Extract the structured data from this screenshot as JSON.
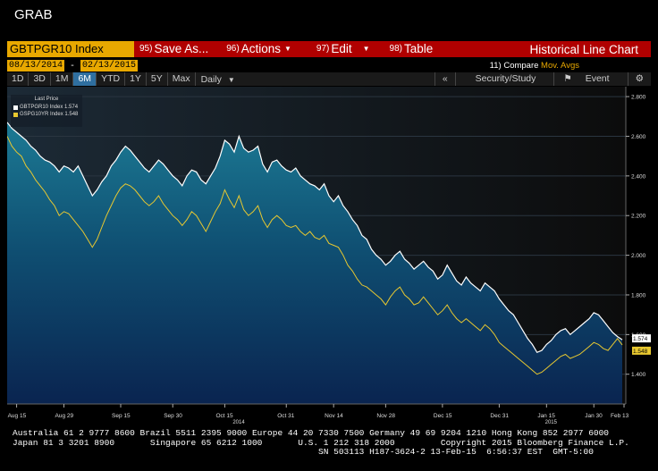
{
  "window": {
    "title": "GRAB"
  },
  "toolbar": {
    "ticker": "GBTPGR10 Index",
    "save": {
      "num": "95)",
      "label": "Save As..."
    },
    "actions": {
      "num": "96)",
      "label": "Actions"
    },
    "edit": {
      "num": "97)",
      "label": "Edit"
    },
    "table": {
      "num": "98)",
      "label": "Table"
    },
    "chart_title": "Historical Line Chart"
  },
  "dates": {
    "start": "08/13/2014",
    "end": "02/13/2015",
    "dash": "-"
  },
  "compare": {
    "num": "11)",
    "label": "Compare",
    "mov": "Mov. Avgs"
  },
  "ranges": [
    "1D",
    "3D",
    "1M",
    "6M",
    "YTD",
    "1Y",
    "5Y",
    "Max"
  ],
  "active_range": "6M",
  "daily": "Daily",
  "right_controls": {
    "collapse": "«",
    "security": "Security/Study",
    "event": "Event",
    "gear": "⚙"
  },
  "legend": {
    "header": "Last Price",
    "items": [
      {
        "name": "GBTPGR10 Index",
        "value": "1.574",
        "color": "#ffffff"
      },
      {
        "name": "GSPG10YR Index",
        "value": "1.548",
        "color": "#e8c830"
      }
    ]
  },
  "footer": {
    "line1": "Australia 61 2 9777 8600 Brazil 5511 2395 9000 Europe 44 20 7330 7500 Germany 49 69 9204 1210 Hong Kong 852 2977 6000",
    "line2": "Japan 81 3 3201 8900       Singapore 65 6212 1000       U.S. 1 212 318 2000         Copyright 2015 Bloomberg Finance L.P.",
    "line3": "                                                            SN 503113 H187-3624-2 13-Feb-15  6:56:37 EST  GMT-5:00"
  },
  "chart_data": {
    "type": "area",
    "ylim": [
      1.25,
      2.85
    ],
    "yticks": [
      1.4,
      1.6,
      1.8,
      2.0,
      2.2,
      2.4,
      2.6,
      2.8
    ],
    "ytick_labels": [
      "1.400",
      "1.600",
      "1.800",
      "2.000",
      "2.200",
      "2.400",
      "2.600",
      "2.800"
    ],
    "x_count": 131,
    "xticks": [
      {
        "i": 2,
        "label": "Aug 15"
      },
      {
        "i": 12,
        "label": "Aug 29"
      },
      {
        "i": 24,
        "label": "Sep 15"
      },
      {
        "i": 35,
        "label": "Sep 30"
      },
      {
        "i": 46,
        "label": "Oct 15"
      },
      {
        "i": 59,
        "label": "Oct 31"
      },
      {
        "i": 69,
        "label": "Nov 14"
      },
      {
        "i": 80,
        "label": "Nov 28"
      },
      {
        "i": 92,
        "label": "Dec 15"
      },
      {
        "i": 104,
        "label": "Dec 31"
      },
      {
        "i": 114,
        "label": "Jan 15"
      },
      {
        "i": 124,
        "label": "Jan 30"
      },
      {
        "i": 134,
        "label": "Feb 13"
      }
    ],
    "year_labels": [
      {
        "i": 49,
        "label": "2014"
      },
      {
        "i": 115,
        "label": "2015"
      }
    ],
    "last_labels": [
      {
        "series": 0,
        "label": "1.574"
      },
      {
        "series": 1,
        "label": "1.548"
      }
    ],
    "series": [
      {
        "name": "GBTPGR10 Index",
        "color": "#ffffff",
        "values": [
          2.67,
          2.64,
          2.62,
          2.6,
          2.58,
          2.55,
          2.53,
          2.5,
          2.48,
          2.47,
          2.45,
          2.42,
          2.45,
          2.44,
          2.42,
          2.45,
          2.4,
          2.35,
          2.3,
          2.33,
          2.37,
          2.4,
          2.45,
          2.48,
          2.52,
          2.55,
          2.53,
          2.5,
          2.47,
          2.44,
          2.42,
          2.45,
          2.48,
          2.46,
          2.43,
          2.4,
          2.38,
          2.35,
          2.4,
          2.43,
          2.42,
          2.38,
          2.36,
          2.4,
          2.44,
          2.5,
          2.58,
          2.56,
          2.52,
          2.6,
          2.54,
          2.52,
          2.53,
          2.55,
          2.46,
          2.42,
          2.47,
          2.48,
          2.45,
          2.43,
          2.42,
          2.44,
          2.4,
          2.38,
          2.36,
          2.35,
          2.33,
          2.36,
          2.3,
          2.27,
          2.3,
          2.25,
          2.22,
          2.18,
          2.15,
          2.1,
          2.08,
          2.03,
          2.0,
          1.98,
          1.95,
          1.97,
          2.0,
          2.02,
          1.98,
          1.96,
          1.93,
          1.95,
          1.97,
          1.94,
          1.92,
          1.88,
          1.9,
          1.95,
          1.91,
          1.87,
          1.85,
          1.89,
          1.86,
          1.84,
          1.82,
          1.86,
          1.84,
          1.82,
          1.78,
          1.75,
          1.72,
          1.7,
          1.66,
          1.62,
          1.58,
          1.55,
          1.51,
          1.52,
          1.55,
          1.57,
          1.6,
          1.62,
          1.63,
          1.6,
          1.62,
          1.64,
          1.66,
          1.68,
          1.71,
          1.7,
          1.67,
          1.64,
          1.61,
          1.59,
          1.574
        ]
      },
      {
        "name": "GSPG10YR Index",
        "color": "#e8c830",
        "values": [
          2.6,
          2.55,
          2.52,
          2.5,
          2.45,
          2.42,
          2.38,
          2.35,
          2.32,
          2.28,
          2.25,
          2.2,
          2.22,
          2.21,
          2.18,
          2.15,
          2.12,
          2.08,
          2.04,
          2.08,
          2.14,
          2.2,
          2.25,
          2.3,
          2.34,
          2.36,
          2.35,
          2.33,
          2.3,
          2.27,
          2.25,
          2.27,
          2.3,
          2.26,
          2.23,
          2.2,
          2.18,
          2.15,
          2.18,
          2.22,
          2.2,
          2.16,
          2.12,
          2.17,
          2.22,
          2.26,
          2.33,
          2.28,
          2.24,
          2.3,
          2.23,
          2.2,
          2.22,
          2.25,
          2.18,
          2.14,
          2.18,
          2.2,
          2.18,
          2.15,
          2.14,
          2.15,
          2.12,
          2.1,
          2.12,
          2.09,
          2.08,
          2.1,
          2.06,
          2.05,
          2.04,
          2.0,
          1.95,
          1.92,
          1.88,
          1.85,
          1.84,
          1.82,
          1.8,
          1.78,
          1.75,
          1.79,
          1.82,
          1.84,
          1.8,
          1.78,
          1.75,
          1.76,
          1.79,
          1.76,
          1.73,
          1.7,
          1.72,
          1.75,
          1.71,
          1.68,
          1.66,
          1.68,
          1.66,
          1.64,
          1.62,
          1.65,
          1.63,
          1.6,
          1.56,
          1.54,
          1.52,
          1.5,
          1.48,
          1.46,
          1.44,
          1.42,
          1.4,
          1.41,
          1.43,
          1.45,
          1.47,
          1.49,
          1.5,
          1.48,
          1.49,
          1.5,
          1.52,
          1.54,
          1.56,
          1.55,
          1.53,
          1.52,
          1.55,
          1.58,
          1.548
        ]
      }
    ]
  }
}
